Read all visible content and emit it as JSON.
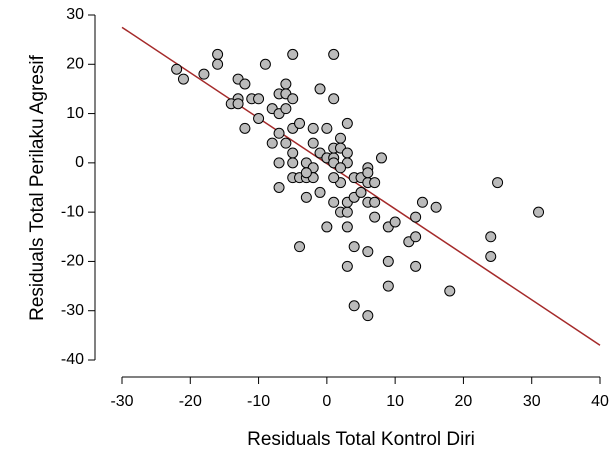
{
  "chart_data": {
    "type": "scatter",
    "xlabel": "Residuals Total Kontrol Diri",
    "ylabel": "Residuals Total Perilaku Agresif",
    "xlim": [
      -30,
      40
    ],
    "ylim": [
      -40,
      30
    ],
    "xticks": [
      -30,
      -20,
      -10,
      0,
      10,
      20,
      30,
      40
    ],
    "yticks": [
      -40,
      -30,
      -20,
      -10,
      0,
      10,
      20,
      30
    ],
    "color": "#bbbbbb",
    "regression": {
      "x": [
        -30,
        40
      ],
      "y": [
        27.5,
        -37
      ],
      "color": "#a52a2a"
    },
    "x": [
      -22,
      -21,
      -18,
      -16,
      -16,
      -13,
      -12,
      -13,
      -14,
      -13,
      -11,
      -10,
      -12,
      -10,
      -9,
      -8,
      -7,
      -7,
      -6,
      -6,
      -5,
      -5,
      -6,
      -5,
      -8,
      -7,
      -6,
      -5,
      -5,
      -7,
      -7,
      -3,
      -2,
      -2,
      -4,
      -2,
      -1,
      0,
      1,
      1,
      -1,
      0,
      1,
      1,
      1,
      2,
      3,
      2,
      3,
      3,
      -5,
      -4,
      -3,
      -2,
      -3,
      -3,
      -1,
      0,
      -4,
      1,
      2,
      3,
      2,
      2,
      1,
      3,
      3,
      3,
      4,
      4,
      5,
      6,
      6,
      7,
      6,
      7,
      7,
      8,
      9,
      10,
      5,
      4,
      6,
      9,
      9,
      4,
      6,
      12,
      13,
      13,
      14,
      16,
      13,
      18,
      24,
      24,
      25,
      31,
      6
    ],
    "y": [
      19,
      17,
      18,
      22,
      20,
      17,
      16,
      13,
      12,
      12,
      13,
      13,
      7,
      9,
      20,
      11,
      10,
      14,
      16,
      14,
      22,
      13,
      11,
      7,
      4,
      6,
      4,
      2,
      0,
      0,
      -5,
      0,
      -1,
      4,
      8,
      7,
      15,
      7,
      22,
      13,
      2,
      1,
      1,
      0,
      3,
      5,
      8,
      3,
      2,
      0,
      -3,
      -3,
      -3,
      -3,
      -2,
      -7,
      -6,
      -13,
      -17,
      -8,
      -10,
      -10,
      -4,
      -1,
      -3,
      -13,
      -8,
      -21,
      -7,
      -3,
      -3,
      -4,
      -1,
      -4,
      -8,
      -8,
      -11,
      1,
      -13,
      -12,
      -6,
      -17,
      -18,
      -20,
      -25,
      -29,
      -31,
      -16,
      -15,
      -11,
      -8,
      -9,
      -21,
      -26,
      -15,
      -19,
      -4,
      -10,
      -2
    ]
  }
}
